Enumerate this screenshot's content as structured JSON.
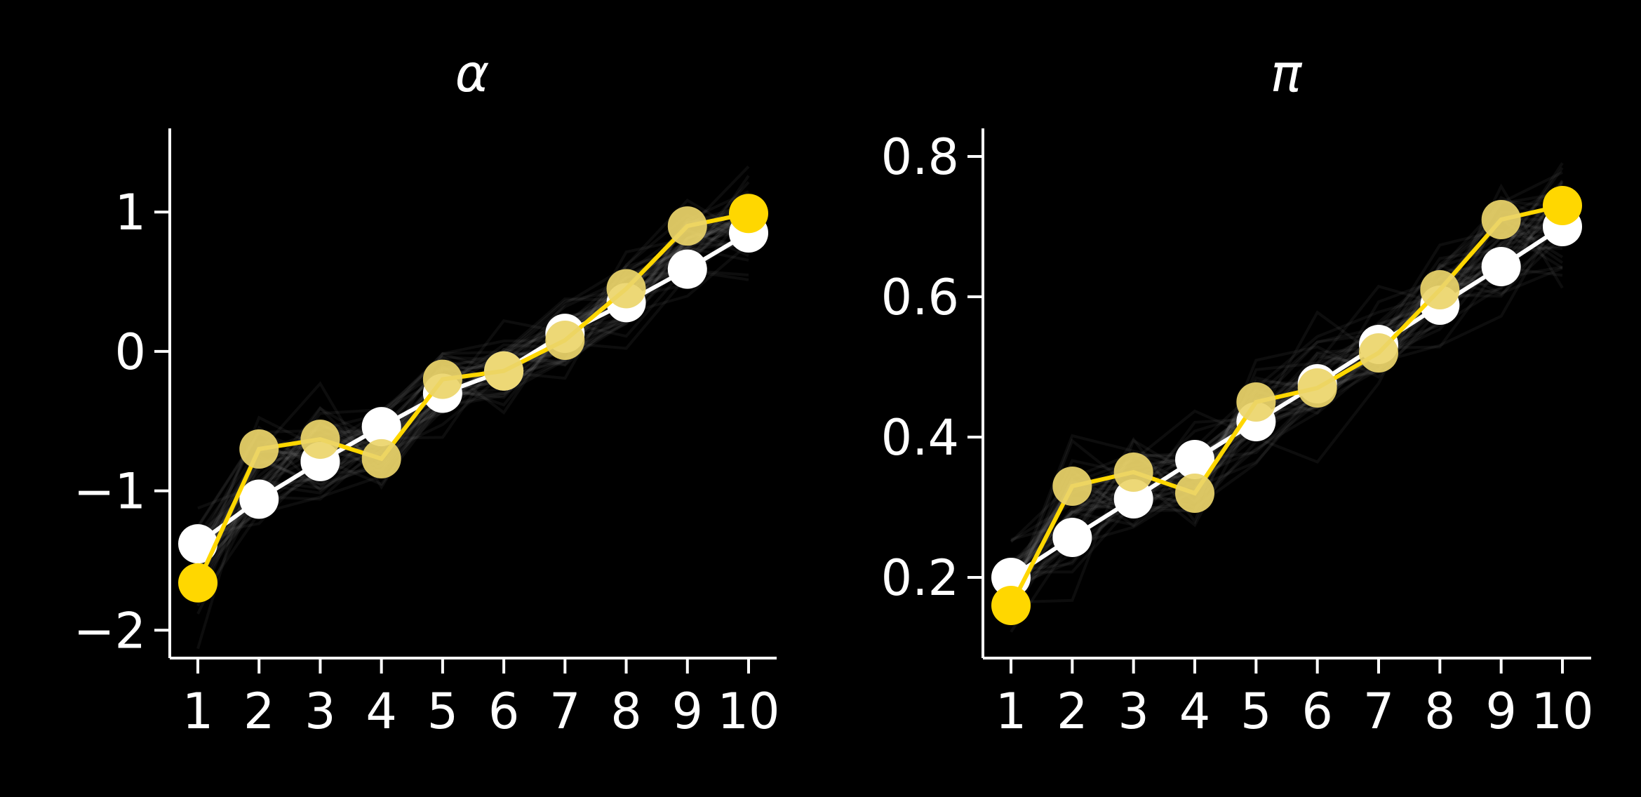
{
  "colors": {
    "background": "#000000",
    "foreground": "#ffffff",
    "observed": "#ffffff",
    "predicted": "#ffd700",
    "predicted_faded": "#ecd56a",
    "samples": "#bdbdbd"
  },
  "chart_data": [
    {
      "type": "line",
      "title": "α",
      "xlabel": "",
      "ylabel": "",
      "categories": [
        1,
        2,
        3,
        4,
        5,
        6,
        7,
        8,
        9,
        10
      ],
      "xtick_labels": [
        "1",
        "2",
        "3",
        "4",
        "5",
        "6",
        "7",
        "8",
        "9",
        "10"
      ],
      "ylim": [
        -2.2,
        1.6
      ],
      "yticks": [
        -2,
        -1,
        0,
        1
      ],
      "ytick_labels": [
        "−2",
        "−1",
        "0",
        "1"
      ],
      "grid": false,
      "legend": "none",
      "series": [
        {
          "role": "observed",
          "color": "#ffffff",
          "values": [
            -1.38,
            -1.06,
            -0.79,
            -0.54,
            -0.3,
            -0.14,
            0.13,
            0.35,
            0.59,
            0.85
          ]
        },
        {
          "role": "predicted",
          "color": "#ffd700",
          "values": [
            -1.66,
            -0.7,
            -0.63,
            -0.77,
            -0.2,
            -0.14,
            0.08,
            0.45,
            0.9,
            0.99
          ]
        }
      ],
      "samples": {
        "color": "#bdbdbd",
        "count": 40,
        "spread": [
          0.22,
          0.25,
          0.22,
          0.2,
          0.2,
          0.18,
          0.18,
          0.18,
          0.2,
          0.22
        ]
      }
    },
    {
      "type": "line",
      "title": "π",
      "xlabel": "",
      "ylabel": "",
      "categories": [
        1,
        2,
        3,
        4,
        5,
        6,
        7,
        8,
        9,
        10
      ],
      "xtick_labels": [
        "1",
        "2",
        "3",
        "4",
        "5",
        "6",
        "7",
        "8",
        "9",
        "10"
      ],
      "ylim": [
        0.085,
        0.84
      ],
      "yticks": [
        0.2,
        0.4,
        0.6,
        0.8
      ],
      "ytick_labels": [
        "0.2",
        "0.4",
        "0.6",
        "0.8"
      ],
      "grid": false,
      "legend": "none",
      "series": [
        {
          "role": "observed",
          "color": "#ffffff",
          "values": [
            0.2,
            0.257,
            0.312,
            0.368,
            0.422,
            0.476,
            0.532,
            0.588,
            0.643,
            0.7
          ]
        },
        {
          "role": "predicted",
          "color": "#ffd700",
          "values": [
            0.16,
            0.33,
            0.35,
            0.32,
            0.45,
            0.47,
            0.52,
            0.61,
            0.71,
            0.73
          ]
        }
      ],
      "samples": {
        "color": "#bdbdbd",
        "count": 40,
        "spread": [
          0.05,
          0.06,
          0.05,
          0.05,
          0.045,
          0.04,
          0.04,
          0.04,
          0.045,
          0.05
        ]
      }
    }
  ]
}
